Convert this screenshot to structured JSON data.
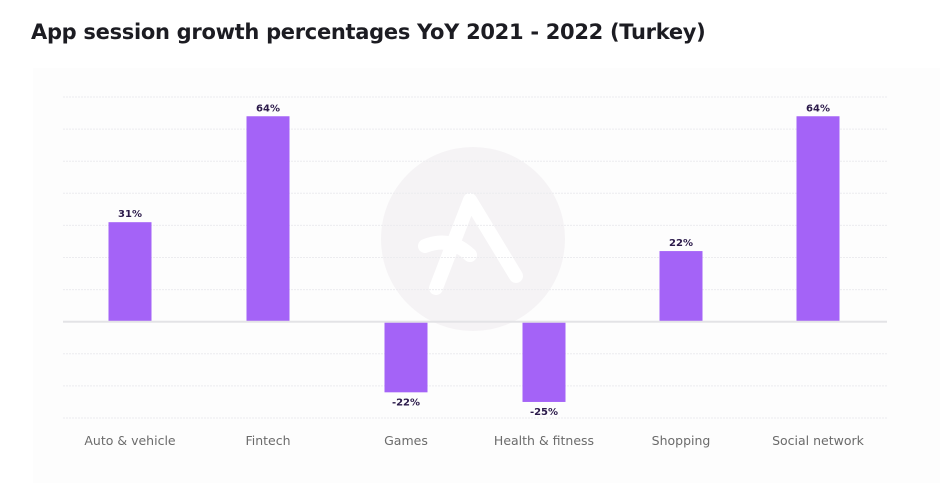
{
  "chart_data": {
    "type": "bar",
    "title": "App session growth percentages YoY 2021 - 2022 (Turkey)",
    "xlabel": "",
    "ylabel": "",
    "categories": [
      "Auto & vehicle",
      "Fintech",
      "Games",
      "Health & fitness",
      "Shopping",
      "Social network"
    ],
    "values": [
      31,
      64,
      -22,
      -25,
      22,
      64
    ],
    "value_labels": [
      "31%",
      "64%",
      "-22%",
      "-25%",
      "22%",
      "64%"
    ],
    "ylim": [
      -30,
      70
    ],
    "grid": true,
    "grid_step": 10,
    "colors": {
      "bar": "#a463f7",
      "label": "#2b1a4a",
      "axis": "#e3e3e6",
      "grid": "#ececef"
    }
  }
}
